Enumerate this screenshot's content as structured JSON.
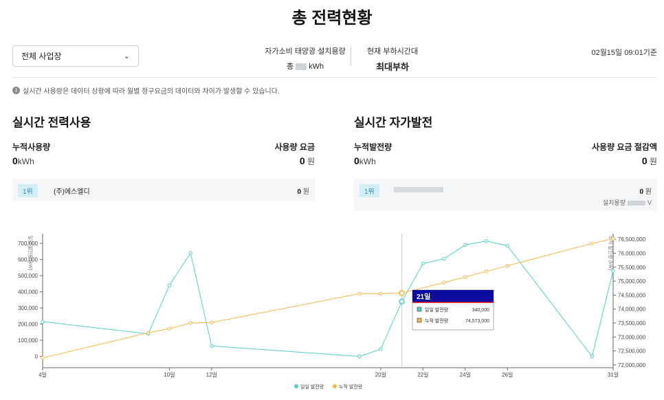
{
  "page": {
    "title": "총 전력현황"
  },
  "filters": {
    "site_select": "전체 사업장"
  },
  "summary": {
    "solar_capacity_label": "자가소비 태양광 설치용량",
    "solar_capacity_prefix": "총",
    "solar_capacity_unit": "kWh",
    "load_time_label": "현재 부하시간대",
    "load_time_value": "최대부하",
    "timestamp": "02월15일 09:01기준"
  },
  "notice": "실시간 사용량은 데이터 상황에 따라 월별 청구요금의 데이터와 차이가 발생할 수 있습니다.",
  "usage": {
    "title": "실시간 전력사용",
    "cumulative_label": "누적사용량",
    "cumulative_value": "0",
    "cumulative_unit": "kWh",
    "fee_label": "사용량 요금",
    "fee_value": "0",
    "fee_unit": "원",
    "ranking": {
      "rank": "1위",
      "name": "(주)에스엘디",
      "amount": "0",
      "unit": "원"
    }
  },
  "generation": {
    "title": "실시간 자가발전",
    "cumulative_label": "누적발전량",
    "cumulative_value": "0",
    "cumulative_unit": "kWh",
    "saving_label": "사용량 요금 절감액",
    "saving_value": "0",
    "saving_unit": "원",
    "ranking": {
      "rank": "1위",
      "amount": "0",
      "unit": "원",
      "capacity_label": "설치용량",
      "capacity_unit": "V"
    }
  },
  "chart_data": {
    "type": "line",
    "ylabel_left": "일일 발전량 (kW)",
    "ylabel_right": "누적 발전량 (kW)",
    "x_ticks": [
      4,
      10,
      12,
      20,
      22,
      24,
      26,
      31
    ],
    "x_tick_suffix": "일",
    "xlim": [
      4,
      31
    ],
    "ylim_left": [
      -70000,
      760000
    ],
    "ylim_right": [
      71900000,
      76700000
    ],
    "left_ticks": [
      0,
      100000,
      200000,
      300000,
      400000,
      500000,
      600000,
      700000
    ],
    "left_tick_labels": [
      "0",
      "100,000",
      "200,000",
      "300,000",
      "400,000",
      "500,000",
      "600,000",
      "700,000"
    ],
    "right_ticks": [
      72000000,
      72500000,
      73000000,
      73500000,
      74000000,
      74500000,
      75000000,
      75500000,
      76000000,
      76500000
    ],
    "right_tick_labels": [
      "72,000,000",
      "72,500,000",
      "73,000,000",
      "73,500,000",
      "74,000,000",
      "74,500,000",
      "75,000,000",
      "75,500,000",
      "76,000,000",
      "76,500,000"
    ],
    "hover_x": 21,
    "series": [
      {
        "name": "일일 발전량",
        "axis": "left",
        "color": "#4fd1c5",
        "x": [
          4,
          9,
          10,
          11,
          12,
          19,
          20,
          21,
          22,
          23,
          24,
          25,
          26,
          30,
          31
        ],
        "values": [
          215000,
          140000,
          440000,
          640000,
          65000,
          0,
          45000,
          340000,
          575000,
          605000,
          690000,
          715000,
          685000,
          0,
          530000
        ]
      },
      {
        "name": "누적 발전량",
        "axis": "right",
        "color": "#f6b63e",
        "x": [
          4,
          9,
          10,
          11,
          12,
          19,
          20,
          21,
          23,
          24,
          25,
          26,
          30,
          31
        ],
        "values": [
          72250000,
          73150000,
          73300000,
          73500000,
          73520000,
          74550000,
          74550000,
          74573000,
          74950000,
          75150000,
          75350000,
          75550000,
          76350000,
          76520000
        ]
      }
    ],
    "tooltip": {
      "title": "21일",
      "rows": [
        {
          "label": "일일 발전량",
          "value": "340,000"
        },
        {
          "label": "누적 발전량",
          "value": "74,573,000"
        }
      ]
    },
    "legend": [
      {
        "label": "일일 발전량",
        "color": "#4fd1c5"
      },
      {
        "label": "누적 발전량",
        "color": "#f6b63e"
      }
    ]
  }
}
